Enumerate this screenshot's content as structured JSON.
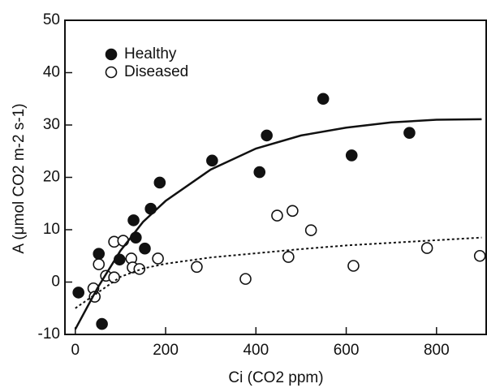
{
  "chart_data": {
    "type": "scatter",
    "x_label": "Ci  (CO2 ppm)",
    "y_label": "A  (μmol CO2 m-2 s-1)",
    "xlim": [
      -23,
      910
    ],
    "ylim": [
      -10,
      50
    ],
    "xticks": [
      0,
      200,
      400,
      600,
      800
    ],
    "yticks": [
      -10,
      0,
      10,
      20,
      30,
      40,
      50
    ],
    "legend": "upper left",
    "series": [
      {
        "name": "Healthy",
        "color": "#111111",
        "marker": "filled",
        "x": [
          7,
          52,
          59,
          98,
          129,
          134,
          154,
          167,
          187,
          303,
          408,
          424,
          549,
          612,
          740
        ],
        "values": [
          -2,
          5.4,
          -8,
          4.3,
          11.8,
          8.5,
          6.4,
          14,
          19,
          23.2,
          21,
          28,
          35,
          24.2,
          28.5
        ]
      },
      {
        "name": "Diseased",
        "color": "#111111",
        "marker": "open",
        "x": [
          40,
          43,
          52,
          68,
          86,
          86,
          106,
          124,
          127,
          142,
          183,
          269,
          377,
          447,
          472,
          481,
          522,
          616,
          779,
          896
        ],
        "values": [
          -1.2,
          -2.8,
          3.4,
          1.2,
          7.7,
          0.9,
          7.9,
          4.5,
          2.8,
          2.5,
          4.5,
          2.9,
          0.6,
          12.7,
          4.8,
          13.6,
          9.9,
          3.1,
          6.5,
          5
        ]
      },
      {
        "color": "#111111",
        "marker": "line",
        "dash": "solid",
        "x": [
          0,
          50,
          100,
          150,
          200,
          300,
          400,
          500,
          600,
          700,
          800,
          900
        ],
        "values": [
          -9,
          -1,
          6,
          11.5,
          15.5,
          21.5,
          25.5,
          28,
          29.5,
          30.5,
          31,
          31.1
        ]
      },
      {
        "color": "#111111",
        "marker": "line",
        "dash": "dotted",
        "x": [
          0,
          50,
          100,
          150,
          200,
          300,
          400,
          500,
          600,
          700,
          800,
          900
        ],
        "values": [
          -5,
          -2,
          1,
          2.6,
          3.5,
          4.7,
          5.5,
          6.3,
          7,
          7.5,
          8,
          8.5
        ]
      }
    ]
  }
}
